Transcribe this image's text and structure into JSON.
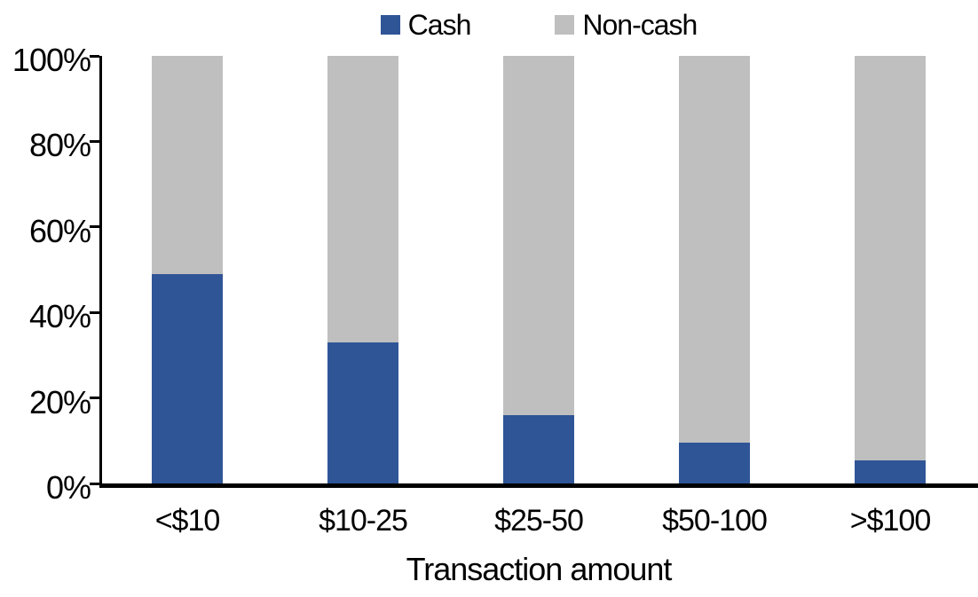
{
  "chart_data": {
    "type": "bar",
    "stacked": true,
    "stacked_100_percent": true,
    "title": "",
    "xlabel": "Transaction amount",
    "ylabel": "",
    "categories": [
      "<$10",
      "$10-25",
      "$25-50",
      "$50-100",
      ">$100"
    ],
    "series": [
      {
        "name": "Cash",
        "color": "#2F5597",
        "values": [
          49,
          33,
          16,
          9.5,
          5.5
        ]
      },
      {
        "name": "Non-cash",
        "color": "#BFBFBF",
        "values": [
          51,
          67,
          84,
          90.5,
          94.5
        ]
      }
    ],
    "ylim": [
      0,
      100
    ],
    "ytick_values": [
      0,
      20,
      40,
      60,
      80,
      100
    ],
    "ytick_labels": [
      "0%",
      "20%",
      "40%",
      "60%",
      "80%",
      "100%"
    ],
    "grid": false,
    "legend_position": "top-center",
    "axis_color": "#000000",
    "text_color": "#000000",
    "background_color": "#FFFFFF"
  }
}
